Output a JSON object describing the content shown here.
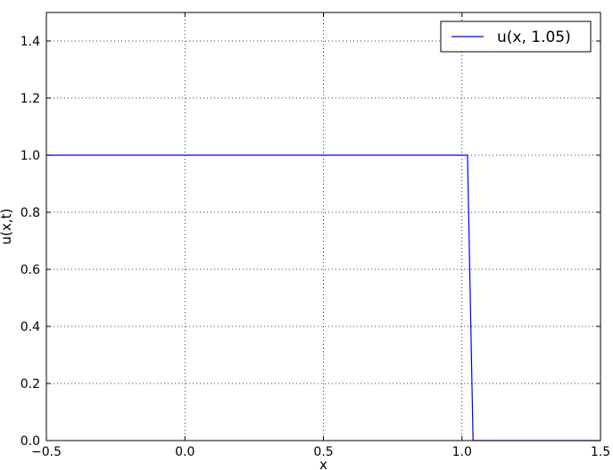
{
  "chart_data": {
    "type": "line",
    "title": "",
    "xlabel": "x",
    "ylabel": "u(x,t)",
    "xlim": [
      -0.5,
      1.5
    ],
    "ylim": [
      0.0,
      1.5
    ],
    "xticks": [
      -0.5,
      0.0,
      0.5,
      1.0,
      1.5
    ],
    "xtick_labels": [
      "−0.5",
      "0.0",
      "0.5",
      "1.0",
      "1.5"
    ],
    "yticks": [
      0.0,
      0.2,
      0.4,
      0.6,
      0.8,
      1.0,
      1.2,
      1.4
    ],
    "ytick_labels": [
      "0.0",
      "0.2",
      "0.4",
      "0.6",
      "0.8",
      "1.0",
      "1.2",
      "1.4"
    ],
    "grid": true,
    "legend_position": "top-right",
    "series": [
      {
        "name": "u(x, 1.05)",
        "color": "#0000ff",
        "x": [
          -0.5,
          1.01,
          1.02,
          1.04,
          1.5
        ],
        "y": [
          1.0,
          1.0,
          1.0,
          0.0,
          0.0
        ]
      }
    ]
  }
}
